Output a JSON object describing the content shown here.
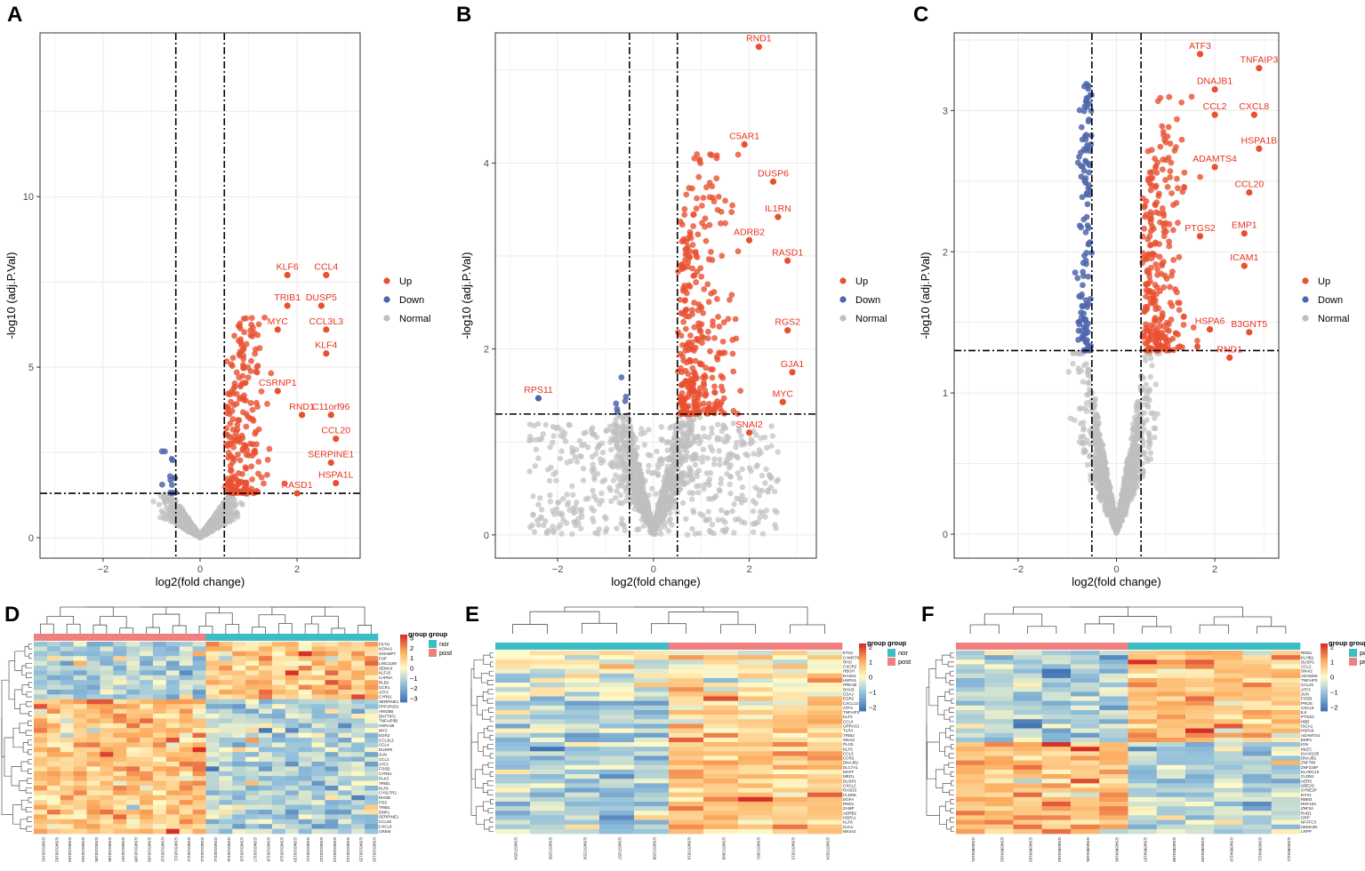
{
  "panels": [
    {
      "letter": "A"
    },
    {
      "letter": "B"
    },
    {
      "letter": "C"
    },
    {
      "letter": "D"
    },
    {
      "letter": "E"
    },
    {
      "letter": "F"
    }
  ],
  "colors": {
    "up": "#e8502f",
    "down": "#4f66ac",
    "normal": "#bfbfbf",
    "label": "#e8331f",
    "panel_bg": "#ffffff",
    "grid": "#ebebeb"
  },
  "chart_data": [
    {
      "id": "A",
      "type": "scatter",
      "xlabel": "log2(fold change)",
      "ylabel": "-log10 (adj.P.Val)",
      "xlim": [
        -3.3,
        3.3
      ],
      "ylim": [
        -0.6,
        14.8
      ],
      "xticks": [
        -2,
        0,
        2
      ],
      "yticks": [
        0,
        5,
        10
      ],
      "fc_threshold": 0.5,
      "p_threshold": 1.3,
      "legend": [
        "Up",
        "Down",
        "Normal"
      ],
      "genes": [
        {
          "name": "KLF6",
          "x": 1.8,
          "y": 7.7
        },
        {
          "name": "CCL4",
          "x": 2.6,
          "y": 7.7
        },
        {
          "name": "TRIB1",
          "x": 1.8,
          "y": 6.8
        },
        {
          "name": "DUSP5",
          "x": 2.5,
          "y": 6.8
        },
        {
          "name": "MYC",
          "x": 1.6,
          "y": 6.1
        },
        {
          "name": "CCL3L3",
          "x": 2.6,
          "y": 6.1
        },
        {
          "name": "KLF4",
          "x": 2.6,
          "y": 5.4
        },
        {
          "name": "CSRNP1",
          "x": 1.6,
          "y": 4.3
        },
        {
          "name": "RND1",
          "x": 2.1,
          "y": 3.6
        },
        {
          "name": "C11orf96",
          "x": 2.7,
          "y": 3.6
        },
        {
          "name": "CCL20",
          "x": 2.8,
          "y": 2.9
        },
        {
          "name": "SERPINE1",
          "x": 2.7,
          "y": 2.2
        },
        {
          "name": "HSPA1L",
          "x": 2.8,
          "y": 1.6
        },
        {
          "name": "RASD1",
          "x": 2.0,
          "y": 1.3
        }
      ]
    },
    {
      "id": "B",
      "type": "scatter",
      "xlabel": "log2(fold change)",
      "ylabel": "-log10 (adj.P.Val)",
      "xlim": [
        -3.3,
        3.4
      ],
      "ylim": [
        -0.25,
        5.4
      ],
      "xticks": [
        -2,
        0,
        2
      ],
      "yticks": [
        0,
        2,
        4
      ],
      "fc_threshold": 0.5,
      "p_threshold": 1.3,
      "legend": [
        "Up",
        "Down",
        "Normal"
      ],
      "genes": [
        {
          "name": "RND1",
          "x": 2.2,
          "y": 5.25
        },
        {
          "name": "C5AR1",
          "x": 1.9,
          "y": 4.2
        },
        {
          "name": "DUSP6",
          "x": 2.5,
          "y": 3.8
        },
        {
          "name": "IL1RN",
          "x": 2.6,
          "y": 3.42
        },
        {
          "name": "ADRB2",
          "x": 2.0,
          "y": 3.17
        },
        {
          "name": "RASD1",
          "x": 2.8,
          "y": 2.95
        },
        {
          "name": "RGS2",
          "x": 2.8,
          "y": 2.2
        },
        {
          "name": "GJA1",
          "x": 2.9,
          "y": 1.75
        },
        {
          "name": "MYC",
          "x": 2.7,
          "y": 1.43
        },
        {
          "name": "SNAI2",
          "x": 2.0,
          "y": 1.1
        },
        {
          "name": "RPS11",
          "x": -2.4,
          "y": 1.47
        }
      ]
    },
    {
      "id": "C",
      "type": "scatter",
      "xlabel": "log2(fold change)",
      "ylabel": "-log10 (adj.P.Val)",
      "xlim": [
        -3.3,
        3.3
      ],
      "ylim": [
        -0.17,
        3.55
      ],
      "xticks": [
        -2,
        0,
        2
      ],
      "yticks": [
        0,
        1,
        2,
        3
      ],
      "fc_threshold": 0.5,
      "p_threshold": 1.3,
      "legend": [
        "Up",
        "Down",
        "Normal"
      ],
      "genes": [
        {
          "name": "ATF3",
          "x": 1.7,
          "y": 3.4
        },
        {
          "name": "TNFAIP3",
          "x": 2.9,
          "y": 3.3
        },
        {
          "name": "DNAJB1",
          "x": 2.0,
          "y": 3.15
        },
        {
          "name": "CCL2",
          "x": 2.0,
          "y": 2.97
        },
        {
          "name": "CXCL8",
          "x": 2.8,
          "y": 2.97
        },
        {
          "name": "HSPA1B",
          "x": 2.9,
          "y": 2.73
        },
        {
          "name": "ADAMTS4",
          "x": 2.0,
          "y": 2.6
        },
        {
          "name": "CCL20",
          "x": 2.7,
          "y": 2.42
        },
        {
          "name": "PTGS2",
          "x": 1.7,
          "y": 2.11
        },
        {
          "name": "EMP1",
          "x": 2.6,
          "y": 2.13
        },
        {
          "name": "ICAM1",
          "x": 2.6,
          "y": 1.9
        },
        {
          "name": "HSPA6",
          "x": 1.9,
          "y": 1.45
        },
        {
          "name": "B3GNT5",
          "x": 2.7,
          "y": 1.43
        },
        {
          "name": "RND1",
          "x": 2.3,
          "y": 1.25
        }
      ]
    },
    {
      "id": "D",
      "type": "heatmap",
      "value_range": [
        -3,
        3
      ],
      "legend_ticks": [
        "3",
        "2",
        "1",
        "0",
        "−1",
        "−2",
        "−3"
      ],
      "group_title": "group",
      "groups": [
        {
          "name": "nor",
          "color": "#3bbdc4"
        },
        {
          "name": "post",
          "color": "#f08080"
        }
      ],
      "top_group": [
        "post",
        "nor"
      ],
      "columns": [
        "GSM3193101",
        "GSM3193102",
        "GSM3193103",
        "GSM3193104",
        "GSM3193105",
        "GSM3193106",
        "GSM3193107",
        "GSM3193108",
        "GSM3193109",
        "GSM3193110",
        "GSM3193111",
        "GSM3193112",
        "GSM3193113",
        "GSM3193114",
        "GSM3193115",
        "GSM3193116",
        "GSM3193117",
        "GSM3193118",
        "GSM3193119",
        "GSM3193120",
        "GSM3193121",
        "GSM3193122",
        "GSM3193123",
        "GSM3193124",
        "GSM3193125",
        "GSM3193126"
      ],
      "rows": [
        "FKTN",
        "KCNA2",
        "GNAMPT",
        "FUP",
        "LINC1189",
        "SEMA3",
        "KLF15",
        "CAPNA",
        "RLB2",
        "GCR1",
        "ATF3",
        "CYR61",
        "SERPINE1",
        "PPP1R15A",
        "ARID5B",
        "DNTTIP2",
        "TNFAIP3B",
        "HSPA1B",
        "MYC",
        "EGR2",
        "CCL3L3",
        "CCL4",
        "DUSP6",
        "JUN",
        "CCL2",
        "ATF3",
        "FOSB",
        "CYR61",
        "PLK3",
        "TRIB1",
        "KLF6",
        "CYSLTR2",
        "RHOB",
        "FOS",
        "TRIB1",
        "EMP1",
        "SERPINE1",
        "CCL20",
        "CXCL8",
        "CREM"
      ]
    },
    {
      "id": "E",
      "type": "heatmap",
      "value_range": [
        -2,
        2
      ],
      "legend_ticks": [
        "2",
        "1",
        "0",
        "−1",
        "−2"
      ],
      "group_title": "group",
      "groups": [
        {
          "name": "nor",
          "color": "#3bbdc4"
        },
        {
          "name": "post",
          "color": "#f08080"
        }
      ],
      "top_group": [
        "nor",
        "post"
      ],
      "columns": [
        "GSM372254",
        "GSM372255",
        "GSM372256",
        "GSM372257",
        "GSM372258",
        "GSM373310",
        "GSM372960",
        "GSM372961",
        "GSM373313",
        "GSM373324"
      ],
      "rows": [
        "ETS1",
        "CAMSTIL3",
        "RHO",
        "CXCR2",
        "HBGH",
        "RASD1",
        "HSPH1",
        "PRKAB",
        "DHIJ3",
        "GSAJ",
        "EGR2",
        "CXCL13",
        "ATF3",
        "TNFAIP3",
        "KLF2",
        "CCL4",
        "GRRAS1",
        "TLR4",
        "TRIB2",
        "SNAI2",
        "PLG5",
        "KLF6",
        "CCL3",
        "CCR2",
        "DNAJB1",
        "SLC7A1",
        "MAFF",
        "MED1",
        "DUSP1",
        "CXCL2",
        "RASD3",
        "CLDN5",
        "DGFA",
        "RND1",
        "ZAMP",
        "ADRB2",
        "HSPA1",
        "KLF8",
        "GJA1",
        "NR4A2"
      ]
    },
    {
      "id": "F",
      "type": "heatmap",
      "value_range": [
        -2,
        2
      ],
      "legend_ticks": [
        "2",
        "1",
        "0",
        "−1",
        "−2"
      ],
      "group_title": "group",
      "groups": [
        {
          "name": "post",
          "color": "#3bbdc4"
        },
        {
          "name": "pre",
          "color": "#f08080"
        }
      ],
      "top_group": [
        "pre",
        "post"
      ],
      "columns": [
        "GSM3884101",
        "GSM3884102",
        "GSM3884103",
        "GSM3884104",
        "GSM3884105",
        "GSM3884106",
        "GSM3884107",
        "GSM3884108",
        "GSM3884109",
        "GSM3884110",
        "GSM3884111",
        "GSM3884112"
      ],
      "rows": [
        "RND1",
        "KLHB1",
        "DUSP1",
        "CCL2",
        "SNAI2",
        "ADAMS5",
        "TNFAIP3",
        "CCL20",
        "ATF3",
        "JUN",
        "FOSB",
        "PROS",
        "CXCL8",
        "IL6",
        "PTGS2",
        "HBB",
        "ISGA1",
        "HSPA6",
        "ADAMTS4",
        "EMP1",
        "IGN",
        "MLEC",
        "KIAA0135",
        "DNAJB1",
        "ZNF780",
        "ZNF225P",
        "KLHDC10",
        "CLDN1",
        "AERS",
        "UBE2G",
        "SYNE2P",
        "DYX1",
        "RBM3",
        "RNF103",
        "ZNF24",
        "RAB1",
        "GRP",
        "NFATC3",
        "SEMA3D",
        "LRPP"
      ]
    }
  ]
}
